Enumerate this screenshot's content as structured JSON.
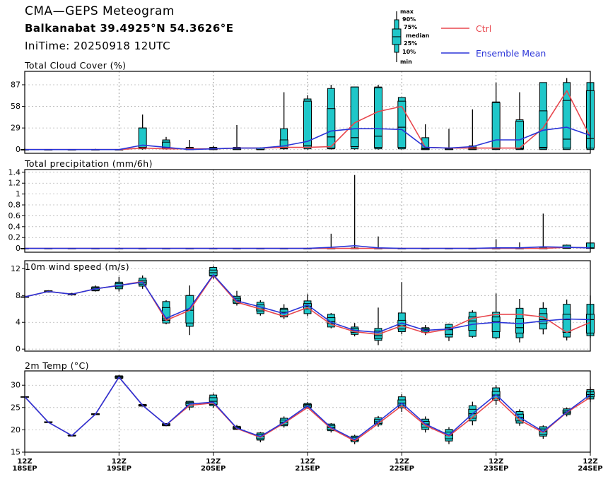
{
  "header": {
    "title": "CMA—GEPS Meteogram",
    "station": "Balkanabat 39.4925°N 54.3626°E",
    "init_time": "IniTime: 20250918 12UTC"
  },
  "legend": {
    "box_labels": [
      "max",
      "90%",
      "75%",
      "median",
      "25%",
      "10%",
      "min"
    ],
    "ctrl_label": "Ctrl",
    "mean_label": "Ensemble Mean",
    "colors": {
      "ctrl": "#e8474e",
      "mean": "#2a34d8",
      "box": "#1fc7c9"
    }
  },
  "chart_data": [
    {
      "type": "boxplot",
      "title": "Total Cloud Cover (%)",
      "ylim": [
        -5,
        105
      ],
      "yticks": [
        0,
        29,
        58,
        87
      ],
      "grid": true,
      "x": [
        0,
        1,
        2,
        3,
        4,
        5,
        6,
        7,
        8,
        9,
        10,
        11,
        12,
        13,
        14,
        15,
        16,
        17,
        18,
        19,
        20,
        21,
        22,
        23,
        24
      ],
      "boxes": [
        [
          0,
          0,
          0,
          0,
          0,
          0,
          2
        ],
        [
          0,
          0,
          0,
          0,
          0,
          0,
          0
        ],
        [
          0,
          0,
          0,
          0,
          0,
          0,
          0
        ],
        [
          0,
          0,
          0,
          0,
          0,
          0,
          1
        ],
        [
          0,
          0,
          0,
          0,
          0,
          0,
          0
        ],
        [
          0,
          1,
          2,
          3,
          29,
          29,
          47
        ],
        [
          0,
          1,
          2,
          3,
          10,
          13,
          17
        ],
        [
          0,
          0,
          0,
          0,
          2,
          3,
          13
        ],
        [
          0,
          0,
          0,
          1,
          2,
          3,
          5
        ],
        [
          0,
          0,
          0,
          1,
          2,
          3,
          33
        ],
        [
          0,
          0,
          0,
          0,
          2,
          2,
          3
        ],
        [
          0,
          1,
          2,
          3,
          13,
          28,
          77
        ],
        [
          0,
          1,
          3,
          5,
          65,
          68,
          73
        ],
        [
          0,
          1,
          2,
          17,
          55,
          82,
          87
        ],
        [
          0,
          1,
          4,
          16,
          84,
          84,
          84
        ],
        [
          0,
          1,
          3,
          18,
          83,
          84,
          87
        ],
        [
          0,
          1,
          3,
          30,
          65,
          70,
          70
        ],
        [
          0,
          0,
          0,
          1,
          2,
          16,
          34
        ],
        [
          0,
          0,
          0,
          1,
          2,
          2,
          28
        ],
        [
          0,
          0,
          0,
          1,
          3,
          5,
          54
        ],
        [
          0,
          0,
          1,
          2,
          63,
          64,
          90
        ],
        [
          0,
          0,
          1,
          2,
          38,
          40,
          77
        ],
        [
          0,
          0,
          2,
          3,
          52,
          90,
          90
        ],
        [
          0,
          0,
          2,
          14,
          66,
          90,
          96
        ],
        [
          0,
          0,
          2,
          15,
          79,
          90,
          90
        ]
      ],
      "series": [
        {
          "name": "Ctrl",
          "values": [
            0,
            0,
            0,
            0,
            0,
            2,
            1,
            1,
            1,
            2,
            2,
            3,
            3,
            4,
            36,
            51,
            58,
            3,
            2,
            2,
            2,
            2,
            29,
            79,
            17
          ]
        },
        {
          "name": "Ensemble Mean",
          "values": [
            0,
            0,
            0,
            0,
            0,
            6,
            3,
            0,
            1,
            2,
            2,
            5,
            11,
            25,
            28,
            28,
            27,
            3,
            2,
            4,
            13,
            13,
            26,
            30,
            19
          ]
        }
      ]
    },
    {
      "type": "boxplot",
      "title": "Total precipitation (mm/6h)",
      "ylim": [
        -0.07,
        1.45
      ],
      "yticks": [
        0,
        0.2,
        0.4,
        0.6,
        0.8,
        1,
        1.2,
        1.4
      ],
      "grid": true,
      "x": [
        0,
        1,
        2,
        3,
        4,
        5,
        6,
        7,
        8,
        9,
        10,
        11,
        12,
        13,
        14,
        15,
        16,
        17,
        18,
        19,
        20,
        21,
        22,
        23,
        24
      ],
      "boxes": [
        [
          0,
          0,
          0,
          0,
          0,
          0,
          0
        ],
        [
          0,
          0,
          0,
          0,
          0,
          0,
          0
        ],
        [
          0,
          0,
          0,
          0,
          0,
          0,
          0
        ],
        [
          0,
          0,
          0,
          0,
          0,
          0,
          0
        ],
        [
          0,
          0,
          0,
          0,
          0,
          0,
          0
        ],
        [
          0,
          0,
          0,
          0,
          0,
          0,
          0
        ],
        [
          0,
          0,
          0,
          0,
          0,
          0,
          0
        ],
        [
          0,
          0,
          0,
          0,
          0,
          0,
          0
        ],
        [
          0,
          0,
          0,
          0,
          0,
          0,
          0
        ],
        [
          0,
          0,
          0,
          0,
          0,
          0,
          0
        ],
        [
          0,
          0,
          0,
          0,
          0,
          0,
          0
        ],
        [
          0,
          0,
          0,
          0,
          0,
          0,
          0
        ],
        [
          0,
          0,
          0,
          0,
          0,
          0,
          0
        ],
        [
          0,
          0,
          0,
          0,
          0,
          0,
          0.27
        ],
        [
          0,
          0,
          0,
          0,
          0,
          0.01,
          1.35
        ],
        [
          0,
          0,
          0,
          0,
          0,
          0,
          0.22
        ],
        [
          0,
          0,
          0,
          0,
          0,
          0,
          0
        ],
        [
          0,
          0,
          0,
          0,
          0,
          0,
          0
        ],
        [
          0,
          0,
          0,
          0,
          0,
          0,
          0
        ],
        [
          0,
          0,
          0,
          0,
          0,
          0,
          0
        ],
        [
          0,
          0,
          0,
          0,
          0,
          0,
          0.17
        ],
        [
          0,
          0,
          0,
          0,
          0,
          0,
          0.11
        ],
        [
          0,
          0,
          0,
          0,
          0,
          0.02,
          0.64
        ],
        [
          0,
          0,
          0,
          0.02,
          0.06,
          0.06,
          0.07
        ],
        [
          0,
          0,
          0,
          0.01,
          0.1,
          0.1,
          0.1
        ]
      ],
      "series": [
        {
          "name": "Ctrl",
          "values": [
            0,
            0,
            0,
            0,
            0,
            0,
            0,
            0,
            0,
            0,
            0,
            0,
            0,
            0,
            0,
            0,
            0,
            0,
            0,
            0,
            0,
            0,
            0,
            0.02,
            0.01
          ]
        },
        {
          "name": "Ensemble Mean",
          "values": [
            0,
            0,
            0,
            0,
            0,
            0,
            0,
            0,
            0,
            0,
            0,
            0,
            0,
            0.02,
            0.05,
            0.01,
            0,
            0,
            0,
            0,
            0.01,
            0.01,
            0.03,
            0.02,
            0.01
          ]
        }
      ]
    },
    {
      "type": "boxplot",
      "title": "10m wind speed (m/s)",
      "ylim": [
        -0.3,
        13.2
      ],
      "yticks": [
        0,
        4,
        8,
        12
      ],
      "grid": true,
      "x": [
        0,
        1,
        2,
        3,
        4,
        5,
        6,
        7,
        8,
        9,
        10,
        11,
        12,
        13,
        14,
        15,
        16,
        17,
        18,
        19,
        20,
        21,
        22,
        23,
        24
      ],
      "boxes": [
        [
          7.8,
          7.8,
          7.8,
          7.8,
          7.8,
          7.8,
          7.9
        ],
        [
          8.5,
          8.5,
          8.6,
          8.6,
          8.7,
          8.7,
          8.8
        ],
        [
          8.0,
          8.1,
          8.2,
          8.2,
          8.3,
          8.3,
          8.4
        ],
        [
          8.6,
          8.7,
          8.8,
          9.0,
          9.2,
          9.3,
          9.5
        ],
        [
          8.6,
          9.0,
          9.3,
          9.5,
          9.8,
          10.0,
          10.8
        ],
        [
          9.0,
          9.4,
          9.7,
          10.0,
          10.3,
          10.6,
          11.0
        ],
        [
          3.7,
          3.9,
          4.3,
          4.5,
          6.2,
          7.1,
          7.3
        ],
        [
          2.1,
          3.4,
          3.9,
          5.8,
          8.0,
          8.0,
          9.5
        ],
        [
          10.5,
          10.9,
          11.0,
          11.4,
          11.8,
          12.2,
          12.4
        ],
        [
          6.5,
          6.8,
          7.0,
          7.3,
          7.6,
          7.9,
          8.7
        ],
        [
          5.0,
          5.3,
          5.7,
          6.0,
          6.6,
          7.0,
          7.3
        ],
        [
          4.5,
          4.8,
          5.0,
          5.5,
          5.9,
          6.1,
          6.7
        ],
        [
          4.9,
          5.3,
          6.0,
          6.4,
          6.8,
          7.2,
          8.2
        ],
        [
          3.1,
          3.3,
          3.8,
          4.1,
          4.7,
          5.2,
          5.4
        ],
        [
          1.9,
          2.2,
          2.5,
          2.8,
          3.1,
          3.3,
          3.9
        ],
        [
          0.6,
          1.3,
          1.6,
          2.0,
          2.7,
          3.1,
          6.2
        ],
        [
          2.2,
          2.6,
          3.0,
          3.5,
          4.3,
          5.4,
          10.0
        ],
        [
          2.1,
          2.5,
          2.7,
          2.9,
          3.1,
          3.2,
          3.6
        ],
        [
          1.2,
          1.8,
          2.2,
          2.9,
          3.2,
          3.7,
          3.8
        ],
        [
          1.7,
          1.9,
          2.8,
          4.2,
          4.8,
          5.5,
          5.8
        ],
        [
          1.5,
          1.7,
          2.6,
          4.1,
          4.8,
          5.5,
          8.3
        ],
        [
          1.0,
          1.7,
          2.4,
          3.2,
          4.6,
          6.1,
          7.5
        ],
        [
          2.2,
          3.0,
          3.8,
          4.4,
          5.3,
          6.1,
          7.0
        ],
        [
          1.3,
          1.8,
          2.5,
          4.4,
          5.2,
          6.7,
          7.4
        ],
        [
          1.7,
          2.0,
          2.4,
          4.4,
          5.2,
          6.7,
          8.0
        ]
      ],
      "series": [
        {
          "name": "Ctrl",
          "values": [
            7.8,
            8.6,
            8.2,
            9.0,
            9.5,
            10.1,
            4.3,
            5.8,
            11.0,
            7.0,
            6.0,
            4.9,
            6.2,
            3.7,
            2.6,
            2.2,
            3.5,
            2.4,
            3.0,
            4.6,
            5.2,
            5.2,
            4.8,
            2.5,
            4.0
          ]
        },
        {
          "name": "Ensemble Mean",
          "values": [
            7.8,
            8.6,
            8.2,
            9.0,
            9.5,
            10.0,
            4.6,
            6.1,
            11.1,
            7.2,
            6.3,
            5.3,
            6.6,
            4.0,
            2.8,
            2.5,
            3.9,
            2.8,
            3.0,
            3.7,
            4.0,
            3.8,
            4.2,
            4.5,
            4.4
          ]
        }
      ]
    },
    {
      "type": "boxplot",
      "title": "2m Temp (°C)",
      "ylim": [
        15,
        33.2
      ],
      "yticks": [
        15,
        20,
        25,
        30
      ],
      "grid": true,
      "x": [
        0,
        1,
        2,
        3,
        4,
        5,
        6,
        7,
        8,
        9,
        10,
        11,
        12,
        13,
        14,
        15,
        16,
        17,
        18,
        19,
        20,
        21,
        22,
        23,
        24
      ],
      "boxes": [
        [
          27.4,
          27.4,
          27.4,
          27.4,
          27.4,
          27.4,
          27.5
        ],
        [
          21.6,
          21.6,
          21.7,
          21.7,
          21.8,
          21.8,
          21.8
        ],
        [
          18.6,
          18.6,
          18.7,
          18.7,
          18.8,
          18.8,
          18.8
        ],
        [
          23.3,
          23.4,
          23.4,
          23.5,
          23.6,
          23.6,
          23.7
        ],
        [
          31.3,
          31.5,
          31.6,
          31.8,
          32.0,
          32.1,
          32.3
        ],
        [
          25.2,
          25.3,
          25.4,
          25.5,
          25.6,
          25.7,
          25.8
        ],
        [
          20.8,
          20.9,
          21.0,
          21.1,
          21.3,
          21.4,
          21.5
        ],
        [
          24.4,
          25.1,
          25.5,
          25.9,
          26.2,
          26.4,
          26.5
        ],
        [
          24.9,
          25.4,
          25.7,
          26.4,
          27.2,
          27.8,
          28.1
        ],
        [
          20.0,
          20.1,
          20.2,
          20.4,
          20.6,
          20.8,
          21.1
        ],
        [
          17.2,
          17.7,
          18.0,
          18.5,
          19.0,
          19.3,
          19.5
        ],
        [
          20.5,
          20.9,
          21.2,
          21.7,
          22.2,
          22.6,
          23.0
        ],
        [
          24.7,
          24.9,
          25.1,
          25.4,
          25.7,
          25.9,
          26.2
        ],
        [
          19.4,
          19.8,
          20.1,
          20.5,
          21.0,
          21.3,
          21.5
        ],
        [
          16.8,
          17.3,
          17.6,
          17.9,
          18.3,
          18.6,
          18.9
        ],
        [
          20.7,
          21.1,
          21.4,
          21.8,
          22.3,
          22.7,
          23.1
        ],
        [
          24.0,
          24.9,
          25.4,
          26.0,
          26.7,
          27.4,
          28.0
        ],
        [
          19.4,
          20.1,
          20.6,
          21.3,
          21.9,
          22.4,
          23.0
        ],
        [
          16.8,
          17.5,
          18.0,
          18.8,
          19.5,
          20.1,
          20.6
        ],
        [
          21.0,
          22.0,
          22.6,
          23.6,
          24.6,
          25.4,
          26.3
        ],
        [
          25.6,
          26.6,
          27.1,
          27.8,
          28.6,
          29.4,
          30.0
        ],
        [
          20.9,
          21.5,
          22.0,
          22.8,
          23.5,
          24.1,
          24.6
        ],
        [
          18.0,
          18.6,
          19.0,
          19.6,
          20.2,
          20.7,
          21.0
        ],
        [
          23.0,
          23.4,
          23.7,
          24.0,
          24.4,
          24.7,
          25.0
        ],
        [
          26.2,
          26.9,
          27.4,
          27.9,
          28.5,
          29.0,
          29.6
        ]
      ],
      "series": [
        {
          "name": "Ctrl",
          "values": [
            27.4,
            21.7,
            18.7,
            23.5,
            31.8,
            25.5,
            21.1,
            25.5,
            26.0,
            20.3,
            18.3,
            21.5,
            25.0,
            20.3,
            17.5,
            21.4,
            25.4,
            21.0,
            18.6,
            22.8,
            27.2,
            22.2,
            19.4,
            23.9,
            27.3
          ]
        },
        {
          "name": "Ensemble Mean",
          "values": [
            27.4,
            21.7,
            18.7,
            23.5,
            31.8,
            25.5,
            21.1,
            25.8,
            26.2,
            20.4,
            18.5,
            21.7,
            25.4,
            20.5,
            17.8,
            21.8,
            26.0,
            21.3,
            18.8,
            23.6,
            27.9,
            22.8,
            19.6,
            24.0,
            27.9
          ]
        }
      ]
    }
  ],
  "x_axis": {
    "ticks": [
      {
        "x": 0,
        "hour": "12Z",
        "date": "18SEP"
      },
      {
        "x": 4,
        "hour": "12Z",
        "date": "19SEP"
      },
      {
        "x": 8,
        "hour": "12Z",
        "date": "20SEP"
      },
      {
        "x": 12,
        "hour": "12Z",
        "date": "21SEP"
      },
      {
        "x": 16,
        "hour": "12Z",
        "date": "22SEP"
      },
      {
        "x": 20,
        "hour": "12Z",
        "date": "23SEP"
      },
      {
        "x": 24,
        "hour": "12Z",
        "date": "24SEP"
      }
    ]
  }
}
